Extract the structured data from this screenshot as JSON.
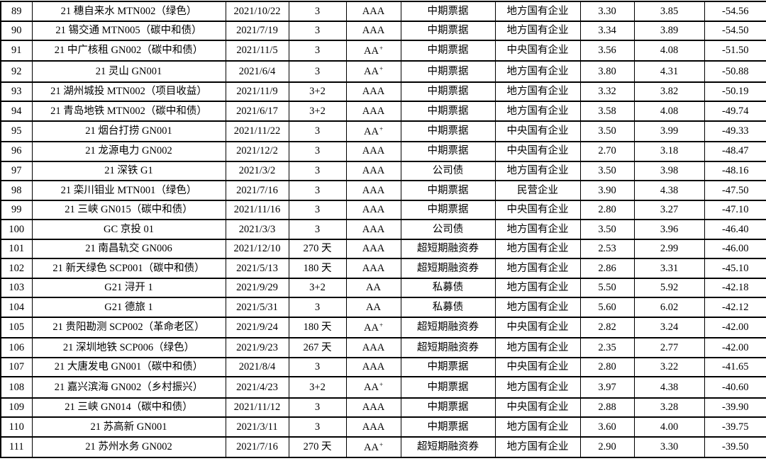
{
  "page": {
    "background_color": "#ffffff",
    "text_color": "#000000",
    "border_color": "#000000"
  },
  "table": {
    "rows": [
      [
        "89",
        "21 穗自来水 MTN002（绿色）",
        "2021/10/22",
        "3",
        "AAA",
        "中期票据",
        "地方国有企业",
        "3.30",
        "3.85",
        "-54.56"
      ],
      [
        "90",
        "21 锡交通 MTN005（碳中和债）",
        "2021/7/19",
        "3",
        "AAA",
        "中期票据",
        "地方国有企业",
        "3.34",
        "3.89",
        "-54.50"
      ],
      [
        "91",
        "21 中广核租 GN002（碳中和债）",
        "2021/11/5",
        "3",
        "AA+",
        "中期票据",
        "中央国有企业",
        "3.56",
        "4.08",
        "-51.50"
      ],
      [
        "92",
        "21 灵山 GN001",
        "2021/6/4",
        "3",
        "AA+",
        "中期票据",
        "地方国有企业",
        "3.80",
        "4.31",
        "-50.88"
      ],
      [
        "93",
        "21 湖州城投 MTN002（项目收益）",
        "2021/11/9",
        "3+2",
        "AAA",
        "中期票据",
        "地方国有企业",
        "3.32",
        "3.82",
        "-50.19"
      ],
      [
        "94",
        "21 青岛地铁 MTN002（碳中和债）",
        "2021/6/17",
        "3+2",
        "AAA",
        "中期票据",
        "地方国有企业",
        "3.58",
        "4.08",
        "-49.74"
      ],
      [
        "95",
        "21 烟台打捞 GN001",
        "2021/11/22",
        "3",
        "AA+",
        "中期票据",
        "中央国有企业",
        "3.50",
        "3.99",
        "-49.33"
      ],
      [
        "96",
        "21 龙源电力 GN002",
        "2021/12/2",
        "3",
        "AAA",
        "中期票据",
        "中央国有企业",
        "2.70",
        "3.18",
        "-48.47"
      ],
      [
        "97",
        "21 深铁 G1",
        "2021/3/2",
        "3",
        "AAA",
        "公司债",
        "地方国有企业",
        "3.50",
        "3.98",
        "-48.16"
      ],
      [
        "98",
        "21 栾川钼业 MTN001（绿色）",
        "2021/7/16",
        "3",
        "AAA",
        "中期票据",
        "民营企业",
        "3.90",
        "4.38",
        "-47.50"
      ],
      [
        "99",
        "21 三峡 GN015（碳中和债）",
        "2021/11/16",
        "3",
        "AAA",
        "中期票据",
        "中央国有企业",
        "2.80",
        "3.27",
        "-47.10"
      ],
      [
        "100",
        "GC 京投 01",
        "2021/3/3",
        "3",
        "AAA",
        "公司债",
        "地方国有企业",
        "3.50",
        "3.96",
        "-46.40"
      ],
      [
        "101",
        "21 南昌轨交 GN006",
        "2021/12/10",
        "270 天",
        "AAA",
        "超短期融资券",
        "地方国有企业",
        "2.53",
        "2.99",
        "-46.00"
      ],
      [
        "102",
        "21 新天绿色 SCP001（碳中和债）",
        "2021/5/13",
        "180 天",
        "AAA",
        "超短期融资券",
        "地方国有企业",
        "2.86",
        "3.31",
        "-45.10"
      ],
      [
        "103",
        "G21 浔开 1",
        "2021/9/29",
        "3+2",
        "AA",
        "私募债",
        "地方国有企业",
        "5.50",
        "5.92",
        "-42.18"
      ],
      [
        "104",
        "G21 德旅 1",
        "2021/5/31",
        "3",
        "AA",
        "私募债",
        "地方国有企业",
        "5.60",
        "6.02",
        "-42.12"
      ],
      [
        "105",
        "21 贵阳勘测 SCP002（革命老区）",
        "2021/9/24",
        "180 天",
        "AA+",
        "超短期融资券",
        "中央国有企业",
        "2.82",
        "3.24",
        "-42.00"
      ],
      [
        "106",
        "21 深圳地铁 SCP006（绿色）",
        "2021/9/23",
        "267 天",
        "AAA",
        "超短期融资券",
        "地方国有企业",
        "2.35",
        "2.77",
        "-42.00"
      ],
      [
        "107",
        "21 大唐发电 GN001（碳中和债）",
        "2021/8/4",
        "3",
        "AAA",
        "中期票据",
        "中央国有企业",
        "2.80",
        "3.22",
        "-41.65"
      ],
      [
        "108",
        "21 嘉兴滨海 GN002（乡村振兴）",
        "2021/4/23",
        "3+2",
        "AA+",
        "中期票据",
        "地方国有企业",
        "3.97",
        "4.38",
        "-40.60"
      ],
      [
        "109",
        "21 三峡 GN014（碳中和债）",
        "2021/11/12",
        "3",
        "AAA",
        "中期票据",
        "中央国有企业",
        "2.88",
        "3.28",
        "-39.90"
      ],
      [
        "110",
        "21 苏高新 GN001",
        "2021/3/11",
        "3",
        "AAA",
        "中期票据",
        "地方国有企业",
        "3.60",
        "4.00",
        "-39.75"
      ],
      [
        "111",
        "21 苏州水务 GN002",
        "2021/7/16",
        "270 天",
        "AA+",
        "超短期融资券",
        "地方国有企业",
        "2.90",
        "3.30",
        "-39.50"
      ]
    ]
  }
}
